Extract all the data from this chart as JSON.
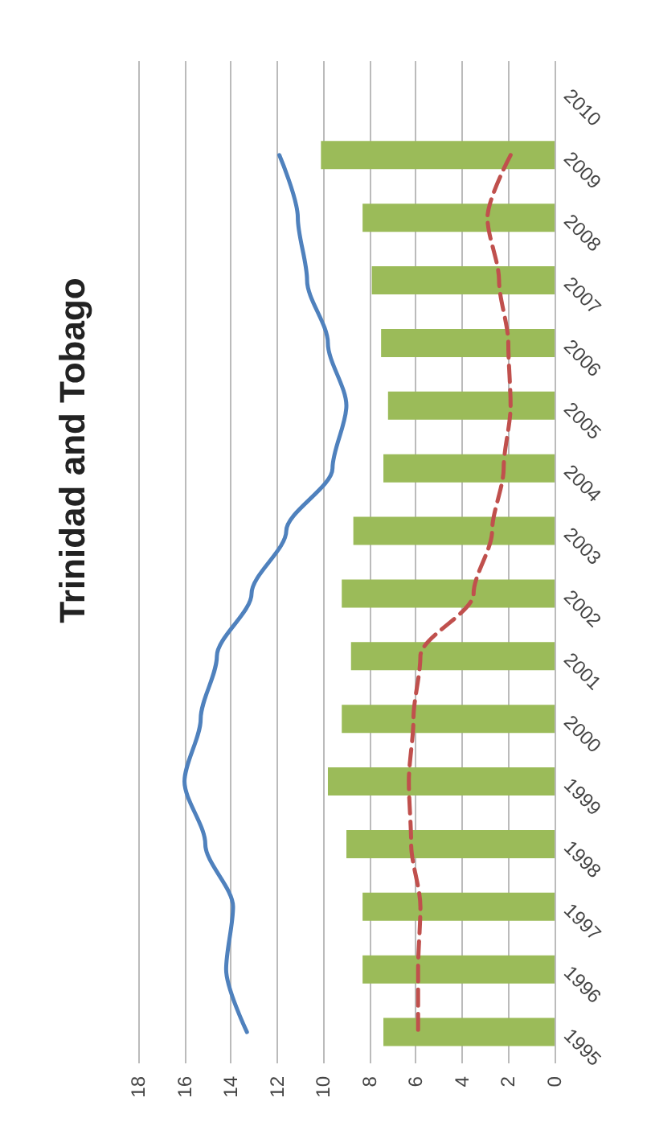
{
  "chart_data": {
    "type": "bar",
    "orientation": "horizontal",
    "title": "Trinidad and Tobago",
    "categories": [
      "2010",
      "2009",
      "2008",
      "2007",
      "2006",
      "2005",
      "2004",
      "2003",
      "2002",
      "2001",
      "2000",
      "1999",
      "1998",
      "1997",
      "1996",
      "1995"
    ],
    "series": [
      {
        "color": "#9bbb59",
        "values": [
          null,
          10.1,
          8.3,
          7.9,
          7.5,
          7.2,
          7.4,
          8.7,
          9.2,
          8.8,
          9.2,
          9.8,
          9.0,
          8.3,
          8.3,
          7.4
        ]
      },
      {
        "type": "line",
        "color": "#4f81bd",
        "line_style": "solid",
        "values": [
          null,
          11.9,
          11.1,
          10.7,
          9.8,
          9.0,
          9.6,
          11.6,
          13.1,
          14.6,
          15.3,
          16.0,
          15.1,
          13.9,
          14.2,
          13.3
        ]
      },
      {
        "type": "line",
        "color": "#c0504d",
        "line_style": "dashed",
        "values": [
          null,
          1.9,
          2.9,
          2.4,
          2.0,
          1.9,
          2.2,
          2.7,
          3.5,
          5.8,
          6.1,
          6.3,
          6.2,
          5.8,
          5.9,
          5.9
        ]
      }
    ],
    "xlim": [
      18,
      0
    ],
    "xticks": [
      18,
      16,
      14,
      12,
      10,
      8,
      6,
      4,
      2,
      0
    ],
    "grid": "x"
  }
}
